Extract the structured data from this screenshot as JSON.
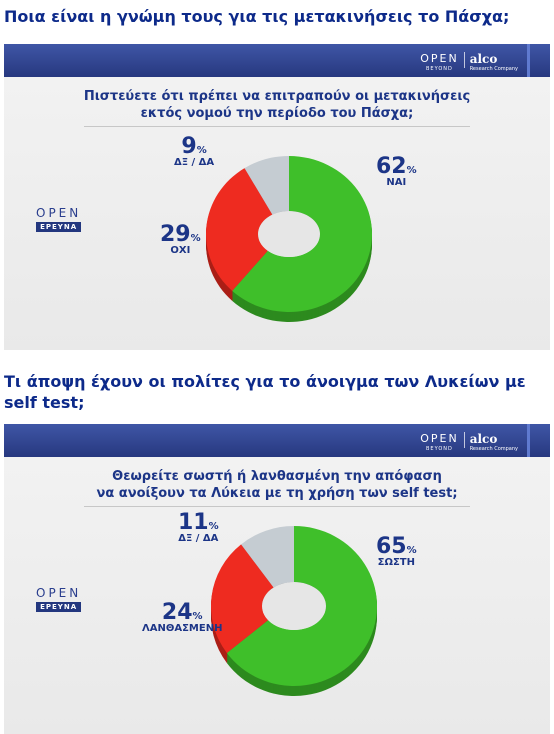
{
  "heading_1": "Ποια είναι η γνώμη τους για τις μετακινήσεις το Πάσχα;",
  "heading_2": "Τι άποψη έχουν οι πολίτες για το άνοιγμα των Λυκείων με self test;",
  "logos": {
    "open": "OPEN",
    "open_sub": "BEYOND",
    "alco": "alco",
    "alco_sub": "Research Company",
    "brand_open": "OPEN",
    "brand_sub": "ΕΡΕΥΝΑ"
  },
  "colors": {
    "heading": "#0d2a8a",
    "topbar": "#2f4592",
    "yes": "#3fbf2a",
    "no": "#ee2b20",
    "dk": "#c5ccd2",
    "label": "#1c3587"
  },
  "chart_data": [
    {
      "type": "pie",
      "title": "Πιστεύετε ότι πρέπει να επιτραπούν οι μετακινήσεις εκτός νομού την περίοδο του Πάσχα;",
      "title_lines": [
        "Πιστεύετε ότι πρέπει να επιτραπούν οι μετακινήσεις",
        "εκτός νομού την περίοδο του Πάσχα;"
      ],
      "slices": [
        {
          "label": "ΝΑΙ",
          "value": 62,
          "color": "#3fbf2a"
        },
        {
          "label": "ΟΧΙ",
          "value": 29,
          "color": "#ee2b20"
        },
        {
          "label": "ΔΞ / ΔΑ",
          "value": 9,
          "color": "#c5ccd2"
        }
      ],
      "unit": "%"
    },
    {
      "type": "pie",
      "title": "Θεωρείτε σωστή ή λανθασμένη την απόφαση να ανοίξουν τα Λύκεια με τη χρήση των self test;",
      "title_lines": [
        "Θεωρείτε σωστή ή λανθασμένη την απόφαση",
        "να ανοίξουν τα Λύκεια με τη χρήση των self test;"
      ],
      "slices": [
        {
          "label": "ΣΩΣΤΗ",
          "value": 65,
          "color": "#3fbf2a"
        },
        {
          "label": "ΛΑΝΘΑΣΜΕΝΗ",
          "value": 24,
          "color": "#ee2b20"
        },
        {
          "label": "ΔΞ / ΔΑ",
          "value": 11,
          "color": "#c5ccd2"
        }
      ],
      "unit": "%"
    }
  ]
}
